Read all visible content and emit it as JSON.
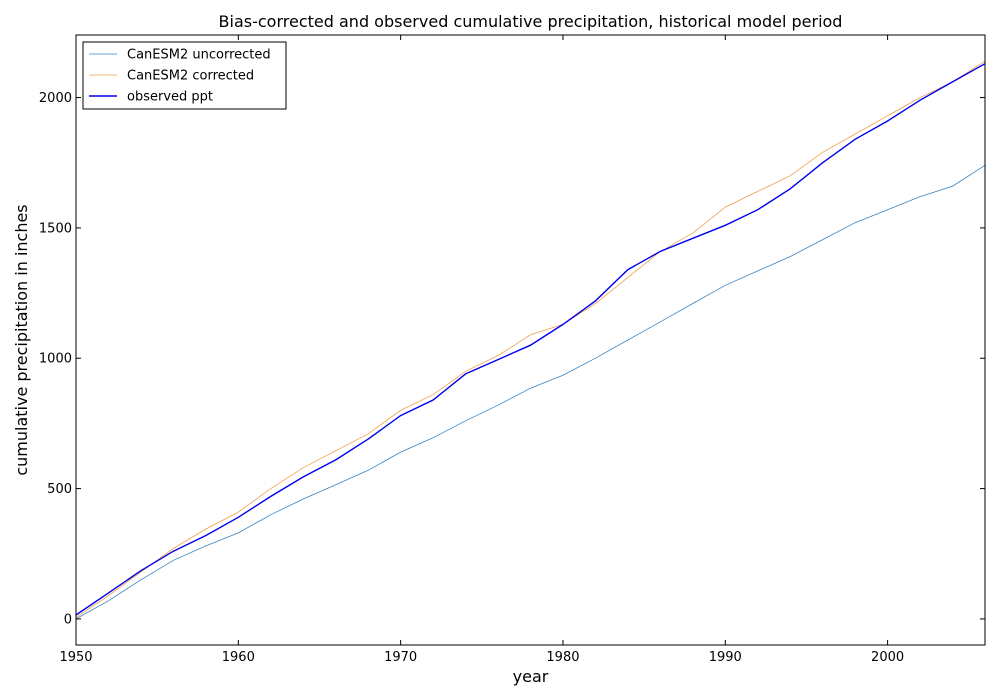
{
  "chart_data": {
    "type": "line",
    "title": "Bias-corrected and observed cumulative precipitation, historical model period",
    "xlabel": "year",
    "ylabel": "cumulative precipitation in inches",
    "xlim": [
      1950,
      2006
    ],
    "ylim": [
      -100,
      2240
    ],
    "x_ticks": [
      1950,
      1960,
      1970,
      1980,
      1990,
      2000
    ],
    "y_ticks": [
      0,
      500,
      1000,
      1500,
      2000
    ],
    "grid": false,
    "legend_position": "top-left",
    "series": [
      {
        "name": "CanESM2 uncorrected",
        "color": "#3b83bd",
        "x": [
          1950,
          1952,
          1954,
          1956,
          1958,
          1960,
          1962,
          1964,
          1966,
          1968,
          1970,
          1972,
          1974,
          1976,
          1978,
          1980,
          1982,
          1984,
          1986,
          1988,
          1990,
          1992,
          1994,
          1996,
          1998,
          2000,
          2002,
          2004,
          2006
        ],
        "y": [
          0,
          70,
          150,
          225,
          280,
          330,
          400,
          460,
          515,
          570,
          640,
          695,
          760,
          820,
          885,
          935,
          1000,
          1070,
          1140,
          1210,
          1280,
          1335,
          1390,
          1455,
          1520,
          1570,
          1620,
          1660,
          1740
        ]
      },
      {
        "name": "CanESM2 corrected",
        "color": "#f0a04b",
        "x": [
          1950,
          1952,
          1954,
          1956,
          1958,
          1960,
          1962,
          1964,
          1966,
          1968,
          1970,
          1972,
          1974,
          1976,
          1978,
          1980,
          1982,
          1984,
          1986,
          1988,
          1990,
          1992,
          1994,
          1996,
          1998,
          2000,
          2002,
          2004,
          2006
        ],
        "y": [
          5,
          90,
          180,
          270,
          345,
          410,
          500,
          580,
          645,
          710,
          800,
          860,
          950,
          1010,
          1090,
          1130,
          1210,
          1310,
          1410,
          1480,
          1580,
          1640,
          1700,
          1790,
          1860,
          1930,
          2000,
          2060,
          2140
        ]
      },
      {
        "name": "observed ppt",
        "color": "#0000ee",
        "x": [
          1950,
          1952,
          1954,
          1956,
          1958,
          1960,
          1962,
          1964,
          1966,
          1968,
          1970,
          1972,
          1974,
          1976,
          1978,
          1980,
          1982,
          1984,
          1986,
          1988,
          1990,
          1992,
          1994,
          1996,
          1998,
          2000,
          2002,
          2004,
          2006
        ],
        "y": [
          15,
          100,
          185,
          260,
          320,
          390,
          470,
          545,
          610,
          690,
          780,
          840,
          940,
          995,
          1050,
          1130,
          1220,
          1340,
          1410,
          1460,
          1510,
          1570,
          1650,
          1750,
          1840,
          1910,
          1990,
          2060,
          2130
        ]
      }
    ]
  }
}
